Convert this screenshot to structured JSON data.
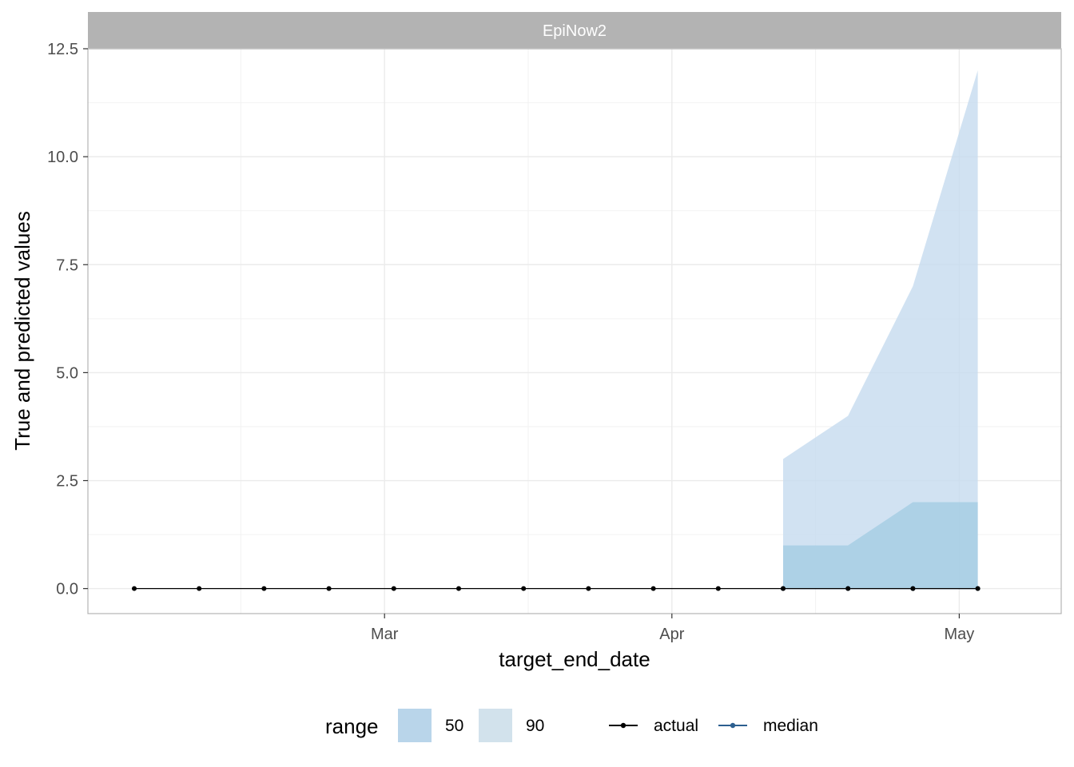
{
  "chart_data": {
    "type": "line",
    "facet_title": "EpiNow2",
    "xlabel": "target_end_date",
    "ylabel": "True and predicted values",
    "ylim": [
      -0.58,
      12.5
    ],
    "xlim": [
      "2021-01-27",
      "2021-05-12"
    ],
    "x_tick_labels": [
      {
        "date": "2021-02-28",
        "label": "Mar"
      },
      {
        "date": "2021-03-31",
        "label": "Apr"
      },
      {
        "date": "2021-05-01",
        "label": "May"
      }
    ],
    "y_ticks": [
      0.0,
      2.5,
      5.0,
      7.5,
      10.0,
      12.5
    ],
    "y_tick_labels": [
      "0.0",
      "2.5",
      "5.0",
      "7.5",
      "10.0",
      "12.5"
    ],
    "grid": true,
    "colors": {
      "range_50": "#9ecae1",
      "range_90": "#c6dbef",
      "actual": "#000000",
      "median": "#2c5f8f",
      "strip_bg": "#b3b3b3",
      "grid": "#ebebeb",
      "panel_border": "#b3b3b3"
    },
    "actual": {
      "name": "actual",
      "x": [
        "2021-02-01",
        "2021-02-08",
        "2021-02-15",
        "2021-02-22",
        "2021-03-01",
        "2021-03-08",
        "2021-03-15",
        "2021-03-22",
        "2021-03-29",
        "2021-04-05",
        "2021-04-12",
        "2021-04-19",
        "2021-04-26",
        "2021-05-03"
      ],
      "values": [
        0,
        0,
        0,
        0,
        0,
        0,
        0,
        0,
        0,
        0,
        0,
        0,
        0,
        0
      ]
    },
    "median": {
      "name": "median",
      "x": [
        "2021-04-12",
        "2021-04-19",
        "2021-04-26",
        "2021-05-03"
      ],
      "values": [
        0,
        0,
        0,
        0
      ]
    },
    "ranges": [
      {
        "name": "90",
        "x": [
          "2021-04-12",
          "2021-04-19",
          "2021-04-26",
          "2021-05-03"
        ],
        "lower": [
          0,
          0,
          0,
          0
        ],
        "upper": [
          3,
          4,
          7,
          12
        ]
      },
      {
        "name": "50",
        "x": [
          "2021-04-12",
          "2021-04-19",
          "2021-04-26",
          "2021-05-03"
        ],
        "lower": [
          0,
          0,
          0,
          0
        ],
        "upper": [
          1,
          1,
          2,
          2
        ]
      }
    ],
    "legend": {
      "position": "bottom",
      "range_title": "range",
      "range_items": [
        "50",
        "90"
      ],
      "line_items": [
        "actual",
        "median"
      ]
    }
  }
}
